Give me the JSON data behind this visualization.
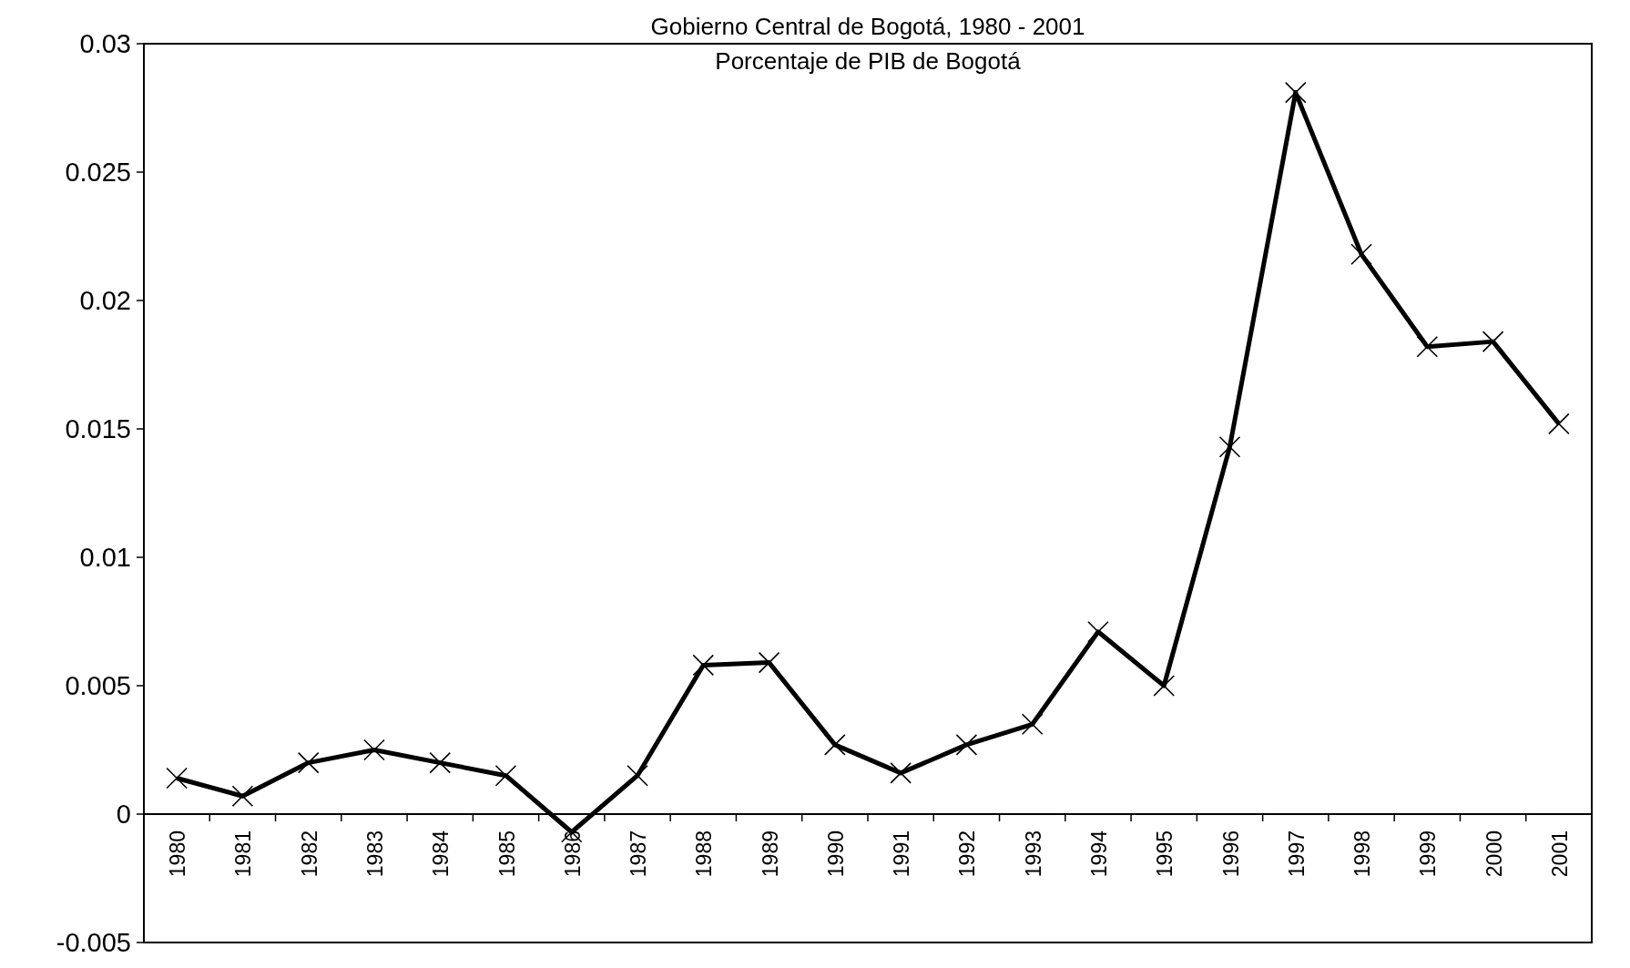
{
  "chart_data": {
    "type": "line",
    "title": "Gobierno Central de Bogotá, 1980 - 2001",
    "subtitle": "Porcentaje de PIB de Bogotá",
    "categories": [
      "1980",
      "1981",
      "1982",
      "1983",
      "1984",
      "1985",
      "1986",
      "1987",
      "1988",
      "1989",
      "1990",
      "1991",
      "1992",
      "1993",
      "1994",
      "1995",
      "1996",
      "1997",
      "1998",
      "1999",
      "2000",
      "2001"
    ],
    "series": [
      {
        "color": "#000000",
        "values": [
          0.0014,
          0.0007,
          0.002,
          0.0025,
          0.002,
          0.0015,
          -0.0007,
          0.0015,
          0.0058,
          0.0059,
          0.0027,
          0.0016,
          0.0027,
          0.0035,
          0.0071,
          0.005,
          0.0143,
          0.0281,
          0.0218,
          0.0182,
          0.0184,
          0.0152
        ]
      }
    ],
    "ylim": [
      -0.005,
      0.03
    ],
    "yticks": [
      -0.005,
      0,
      0.005,
      0.01,
      0.015,
      0.02,
      0.025,
      0.03
    ],
    "marker": "cross"
  }
}
